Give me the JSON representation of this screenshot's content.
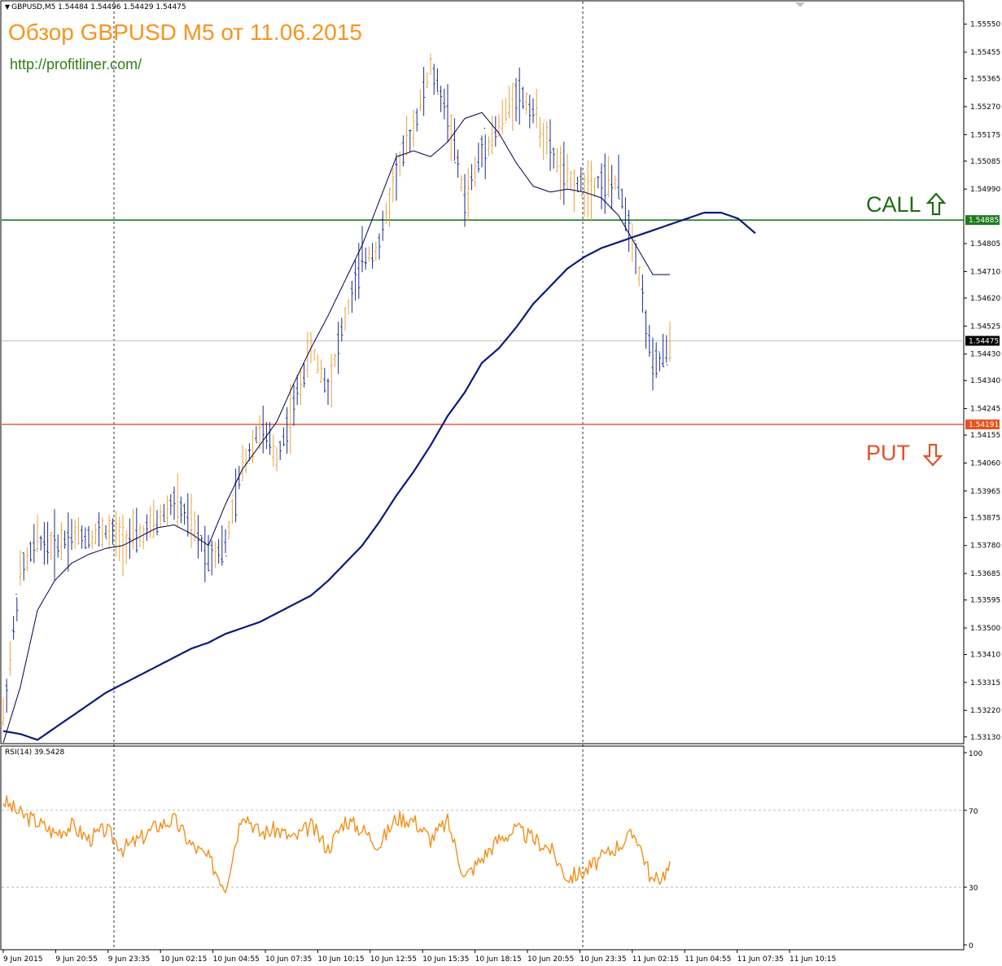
{
  "header": {
    "symbol_info": "GBPUSD,M5  1.54484 1.54496 1.54429 1.54475",
    "title": "Обзор GBPUSD M5 от 11.06.2015",
    "site": "http://profitliner.com/"
  },
  "labels": {
    "call": "CALL",
    "put": "PUT",
    "rsi": "RSI(14) 39.5428"
  },
  "colors": {
    "candles": "#e8a13a",
    "ma_fast": "#00004d",
    "ma_slow": "#0a1a7a",
    "call_line": "#1f7a1f",
    "put_line": "#e8501e",
    "rsi_line": "#f0901a",
    "title": "#f7931e",
    "site": "#2e7d14"
  },
  "icons": {
    "call_arrow": "arrow-up-outline-icon",
    "put_arrow": "arrow-down-outline-icon",
    "scroll_marker": "triangle-down-icon"
  },
  "chart_data": [
    {
      "type": "line",
      "panel": "price",
      "ylim": [
        1.5311,
        1.5561
      ],
      "y_ticks": [
        "1.55550",
        "1.55455",
        "1.55365",
        "1.55270",
        "1.55175",
        "1.55085",
        "1.54990",
        "1.54805",
        "1.54710",
        "1.54620",
        "1.54525",
        "1.54430",
        "1.54340",
        "1.54245",
        "1.54155",
        "1.54060",
        "1.53965",
        "1.53875",
        "1.53780",
        "1.53685",
        "1.53595",
        "1.53500",
        "1.53410",
        "1.53315",
        "1.53220",
        "1.53130"
      ],
      "x_ticks": [
        "9 Jun 2015",
        "9 Jun 20:55",
        "9 Jun 23:35",
        "10 Jun 02:15",
        "10 Jun 04:55",
        "10 Jun 07:35",
        "10 Jun 10:15",
        "10 Jun 12:55",
        "10 Jun 15:35",
        "10 Jun 18:15",
        "10 Jun 20:55",
        "10 Jun 23:35",
        "11 Jun 02:15",
        "11 Jun 04:55",
        "11 Jun 07:35",
        "11 Jun 10:15"
      ],
      "levels": [
        {
          "name": "call",
          "value": 1.54885,
          "label": "1.54885"
        },
        {
          "name": "put",
          "value": 1.54191,
          "label": "1.54191"
        },
        {
          "name": "current",
          "value": 1.54475,
          "label": "1.54475"
        }
      ],
      "series": [
        {
          "role": "price",
          "x": [
            0,
            5,
            10,
            15,
            20,
            25,
            30,
            35,
            40,
            45,
            50,
            55,
            60,
            65,
            70,
            75,
            80,
            85,
            90,
            95,
            100,
            105,
            110,
            115,
            120,
            125,
            130,
            135,
            140,
            145,
            150,
            155,
            160,
            165,
            170,
            175,
            180,
            185,
            190,
            195
          ],
          "values": [
            1.532,
            1.5368,
            1.538,
            1.5378,
            1.5382,
            1.5381,
            1.5383,
            1.538,
            1.5381,
            1.5386,
            1.5393,
            1.5385,
            1.5375,
            1.5378,
            1.5405,
            1.5418,
            1.5408,
            1.5425,
            1.5445,
            1.5432,
            1.5455,
            1.5475,
            1.548,
            1.5505,
            1.552,
            1.554,
            1.5525,
            1.5495,
            1.5512,
            1.552,
            1.5532,
            1.5526,
            1.5512,
            1.5502,
            1.55,
            1.5502,
            1.55,
            1.5478,
            1.5438,
            1.5445
          ]
        },
        {
          "role": "ma_fast",
          "x": [
            0,
            5,
            10,
            15,
            20,
            25,
            30,
            35,
            40,
            45,
            50,
            55,
            60,
            65,
            70,
            75,
            80,
            85,
            90,
            95,
            100,
            105,
            110,
            115,
            120,
            125,
            130,
            135,
            140,
            145,
            150,
            155,
            160,
            165,
            170,
            175,
            180,
            185,
            190,
            195
          ],
          "values": [
            1.5311,
            1.533,
            1.5356,
            1.5366,
            1.5372,
            1.5375,
            1.5377,
            1.5378,
            1.5381,
            1.5384,
            1.5385,
            1.5382,
            1.5378,
            1.5392,
            1.5404,
            1.5412,
            1.542,
            1.5433,
            1.5445,
            1.5456,
            1.5468,
            1.548,
            1.5495,
            1.551,
            1.5512,
            1.551,
            1.5515,
            1.5523,
            1.5525,
            1.5518,
            1.5508,
            1.55,
            1.5498,
            1.5499,
            1.5498,
            1.5496,
            1.549,
            1.548,
            1.547,
            1.547
          ]
        },
        {
          "role": "ma_slow",
          "x": [
            0,
            5,
            10,
            15,
            20,
            25,
            30,
            35,
            40,
            45,
            50,
            55,
            60,
            65,
            70,
            75,
            80,
            85,
            90,
            95,
            100,
            105,
            110,
            115,
            120,
            125,
            130,
            135,
            140,
            145,
            150,
            155,
            160,
            165,
            170,
            175,
            180,
            185,
            190,
            195,
            200,
            205,
            210,
            215,
            220
          ],
          "values": [
            1.5315,
            1.5314,
            1.5312,
            1.5316,
            1.532,
            1.5324,
            1.5328,
            1.5331,
            1.5334,
            1.5337,
            1.534,
            1.5343,
            1.5345,
            1.5348,
            1.535,
            1.5352,
            1.5355,
            1.5358,
            1.5361,
            1.5366,
            1.5372,
            1.5378,
            1.5386,
            1.5395,
            1.5403,
            1.5412,
            1.5422,
            1.543,
            1.544,
            1.5445,
            1.5452,
            1.546,
            1.5466,
            1.5472,
            1.5476,
            1.5479,
            1.5481,
            1.5483,
            1.5485,
            1.5487,
            1.5489,
            1.5491,
            1.5491,
            1.5489,
            1.5484
          ]
        }
      ]
    },
    {
      "type": "line",
      "panel": "rsi",
      "ylim": [
        0,
        100
      ],
      "y_ticks": [
        "100",
        "70",
        "30",
        "0"
      ],
      "levels": [
        70,
        30
      ],
      "series": [
        {
          "role": "rsi",
          "x": [
            0,
            5,
            10,
            15,
            20,
            25,
            30,
            35,
            40,
            45,
            50,
            55,
            60,
            65,
            70,
            75,
            80,
            85,
            90,
            95,
            100,
            105,
            110,
            115,
            120,
            125,
            130,
            135,
            140,
            145,
            150,
            155,
            160,
            165,
            170,
            175,
            180,
            185,
            190,
            195
          ],
          "values": [
            75,
            68,
            64,
            58,
            62,
            55,
            60,
            50,
            55,
            62,
            65,
            52,
            45,
            30,
            70,
            58,
            60,
            55,
            62,
            50,
            65,
            60,
            52,
            66,
            65,
            55,
            64,
            35,
            45,
            55,
            60,
            55,
            50,
            35,
            38,
            45,
            52,
            58,
            32,
            40
          ]
        }
      ]
    }
  ]
}
